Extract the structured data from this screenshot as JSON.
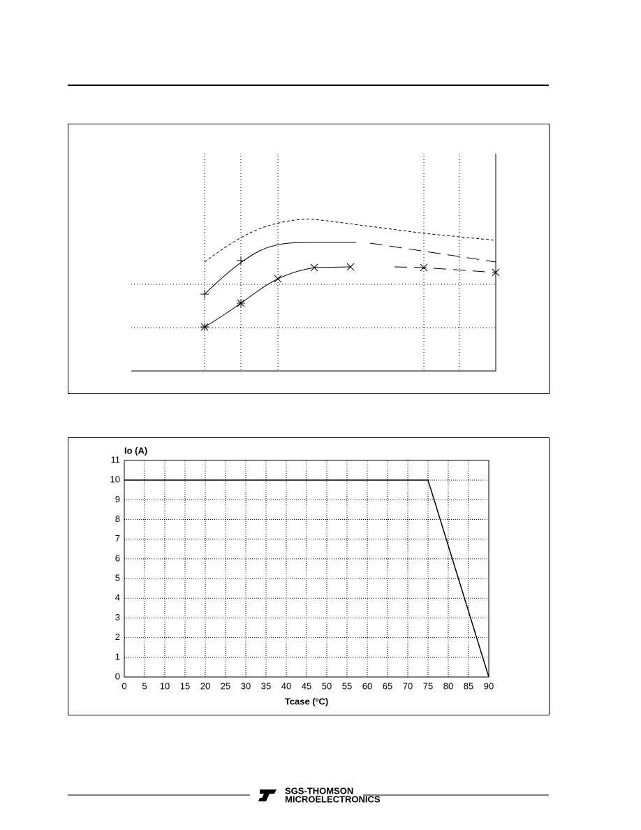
{
  "chart_data": {
    "type": "line",
    "ylabel": "Io (A)",
    "xlabel": "Tcase (ºC)",
    "x": [
      0,
      75,
      90
    ],
    "values": [
      10,
      10,
      0
    ],
    "color": "#000000",
    "xlim": [
      0,
      90
    ],
    "xticks": [
      0,
      5,
      10,
      15,
      20,
      25,
      30,
      35,
      40,
      45,
      50,
      55,
      60,
      65,
      70,
      75,
      80,
      85,
      90
    ],
    "ylim": [
      0,
      11
    ],
    "yticks": [
      0,
      1,
      2,
      3,
      4,
      5,
      6,
      7,
      8,
      9,
      10,
      11
    ],
    "grid": true
  },
  "footer": {
    "brand": "SGS-THOMSON",
    "subtitle": "MICROELECTRONICS"
  }
}
